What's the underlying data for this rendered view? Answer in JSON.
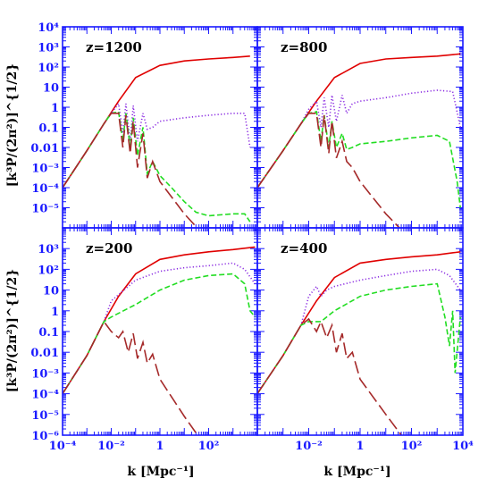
{
  "colors": {
    "axes": "#1a1aff",
    "total": "#e00000",
    "dotted": "#8a2be2",
    "dashed": "#22dd22",
    "longdash": "#a52a2a"
  },
  "yaxis_label": "[k³P/(2π²)]^{1/2}",
  "xaxis_label": "k [Mpc⁻¹]",
  "chart_data": [
    {
      "type": "line",
      "title": "z=1200",
      "xscale": "log",
      "yscale": "log",
      "xlim": [
        0.0001,
        10000
      ],
      "ylim": [
        1e-06,
        10000
      ],
      "x_ticks": [],
      "y_ticks": [
        "10⁴",
        "10³",
        "10²",
        "10",
        "1",
        "0.1",
        "0.01",
        "10⁻³",
        "10⁻⁴",
        "10⁻⁵"
      ],
      "series": [
        {
          "style": "solid",
          "color": "#e00000",
          "points": [
            [
              0.0001,
              0.0001
            ],
            [
              0.001,
              0.007
            ],
            [
              0.005,
              0.15
            ],
            [
              0.02,
              2
            ],
            [
              0.1,
              30
            ],
            [
              1,
              120
            ],
            [
              10,
              200
            ],
            [
              100,
              250
            ],
            [
              1000,
              300
            ],
            [
              5000,
              350
            ]
          ]
        },
        {
          "style": "dotted",
          "color": "#8a2be2",
          "points": [
            [
              0.0001,
              0.0001
            ],
            [
              0.001,
              0.007
            ],
            [
              0.005,
              0.15
            ],
            [
              0.01,
              0.5
            ],
            [
              0.02,
              1.5
            ],
            [
              0.03,
              0.05
            ],
            [
              0.04,
              1.5
            ],
            [
              0.06,
              0.02
            ],
            [
              0.08,
              1.2
            ],
            [
              0.12,
              0.02
            ],
            [
              0.2,
              0.5
            ],
            [
              0.3,
              0.08
            ],
            [
              0.5,
              0.1
            ],
            [
              1,
              0.2
            ],
            [
              10,
              0.3
            ],
            [
              100,
              0.4
            ],
            [
              1000,
              0.5
            ],
            [
              3000,
              0.5
            ],
            [
              5000,
              0.01
            ]
          ]
        },
        {
          "style": "dashed",
          "color": "#22dd22",
          "points": [
            [
              0.0001,
              0.0001
            ],
            [
              0.001,
              0.007
            ],
            [
              0.005,
              0.15
            ],
            [
              0.01,
              0.5
            ],
            [
              0.02,
              0.6
            ],
            [
              0.03,
              0.02
            ],
            [
              0.04,
              0.5
            ],
            [
              0.06,
              0.01
            ],
            [
              0.08,
              0.3
            ],
            [
              0.12,
              0.004
            ],
            [
              0.2,
              0.1
            ],
            [
              0.3,
              0.0005
            ],
            [
              0.5,
              0.002
            ],
            [
              1,
              0.0004
            ],
            [
              3,
              0.0001
            ],
            [
              10,
              2e-05
            ],
            [
              30,
              6e-06
            ],
            [
              100,
              4e-06
            ],
            [
              1000,
              5e-06
            ],
            [
              3000,
              5e-06
            ],
            [
              5000,
              2e-06
            ]
          ]
        },
        {
          "style": "longdash",
          "color": "#a52a2a",
          "points": [
            [
              0.0001,
              0.0001
            ],
            [
              0.001,
              0.007
            ],
            [
              0.005,
              0.15
            ],
            [
              0.01,
              0.5
            ],
            [
              0.02,
              0.5
            ],
            [
              0.03,
              0.01
            ],
            [
              0.04,
              0.4
            ],
            [
              0.06,
              0.005
            ],
            [
              0.08,
              0.2
            ],
            [
              0.12,
              0.001
            ],
            [
              0.2,
              0.05
            ],
            [
              0.3,
              0.0003
            ],
            [
              0.5,
              0.002
            ],
            [
              1,
              0.0002
            ],
            [
              10,
              5e-06
            ],
            [
              40,
              8e-07
            ]
          ]
        }
      ]
    },
    {
      "type": "line",
      "title": "z=800",
      "xscale": "log",
      "yscale": "log",
      "xlim": [
        0.0001,
        10000
      ],
      "ylim": [
        1e-06,
        10000
      ],
      "x_ticks": [],
      "y_ticks": [],
      "series": [
        {
          "style": "solid",
          "color": "#e00000",
          "points": [
            [
              0.0001,
              0.0001
            ],
            [
              0.001,
              0.007
            ],
            [
              0.005,
              0.15
            ],
            [
              0.02,
              2
            ],
            [
              0.1,
              30
            ],
            [
              1,
              150
            ],
            [
              10,
              250
            ],
            [
              100,
              300
            ],
            [
              1000,
              350
            ],
            [
              8000,
              450
            ]
          ]
        },
        {
          "style": "dotted",
          "color": "#8a2be2",
          "points": [
            [
              0.0001,
              0.0001
            ],
            [
              0.001,
              0.007
            ],
            [
              0.005,
              0.15
            ],
            [
              0.01,
              0.8
            ],
            [
              0.02,
              2
            ],
            [
              0.03,
              0.1
            ],
            [
              0.04,
              3
            ],
            [
              0.06,
              0.1
            ],
            [
              0.08,
              4
            ],
            [
              0.12,
              0.2
            ],
            [
              0.2,
              4
            ],
            [
              0.3,
              0.5
            ],
            [
              0.5,
              1.5
            ],
            [
              1,
              2
            ],
            [
              10,
              3
            ],
            [
              100,
              5
            ],
            [
              1000,
              7
            ],
            [
              4000,
              6
            ],
            [
              8000,
              0.1
            ]
          ]
        },
        {
          "style": "dashed",
          "color": "#22dd22",
          "points": [
            [
              0.0001,
              0.0001
            ],
            [
              0.001,
              0.007
            ],
            [
              0.005,
              0.15
            ],
            [
              0.01,
              0.5
            ],
            [
              0.02,
              0.6
            ],
            [
              0.03,
              0.02
            ],
            [
              0.04,
              0.4
            ],
            [
              0.06,
              0.01
            ],
            [
              0.08,
              0.2
            ],
            [
              0.12,
              0.01
            ],
            [
              0.2,
              0.05
            ],
            [
              0.3,
              0.008
            ],
            [
              0.5,
              0.01
            ],
            [
              1,
              0.015
            ],
            [
              10,
              0.02
            ],
            [
              100,
              0.03
            ],
            [
              1000,
              0.04
            ],
            [
              3000,
              0.02
            ],
            [
              6000,
              0.0002
            ],
            [
              8000,
              1e-05
            ]
          ]
        },
        {
          "style": "longdash",
          "color": "#a52a2a",
          "points": [
            [
              0.0001,
              0.0001
            ],
            [
              0.001,
              0.007
            ],
            [
              0.005,
              0.15
            ],
            [
              0.01,
              0.5
            ],
            [
              0.02,
              0.5
            ],
            [
              0.03,
              0.01
            ],
            [
              0.04,
              0.4
            ],
            [
              0.06,
              0.005
            ],
            [
              0.08,
              0.2
            ],
            [
              0.12,
              0.003
            ],
            [
              0.2,
              0.02
            ],
            [
              0.3,
              0.002
            ],
            [
              0.5,
              0.001
            ],
            [
              1,
              0.0002
            ],
            [
              10,
              5e-06
            ],
            [
              40,
              8e-07
            ]
          ]
        }
      ]
    },
    {
      "type": "line",
      "title": "z=200",
      "xscale": "log",
      "yscale": "log",
      "xlim": [
        0.0001,
        10000
      ],
      "ylim": [
        1e-06,
        10000
      ],
      "x_ticks": [
        "10⁻⁴",
        "10⁻²",
        "1",
        "10²"
      ],
      "y_ticks": [
        "10³",
        "10²",
        "10",
        "1",
        "0.1",
        "0.01",
        "10⁻³",
        "10⁻⁴",
        "10⁻⁵",
        "10⁻⁶"
      ],
      "series": [
        {
          "style": "solid",
          "color": "#e00000",
          "points": [
            [
              0.0001,
              0.0001
            ],
            [
              0.001,
              0.007
            ],
            [
              0.005,
              0.3
            ],
            [
              0.02,
              5
            ],
            [
              0.1,
              60
            ],
            [
              1,
              300
            ],
            [
              10,
              500
            ],
            [
              100,
              700
            ],
            [
              1000,
              900
            ],
            [
              8000,
              1200
            ]
          ]
        },
        {
          "style": "dotted",
          "color": "#8a2be2",
          "points": [
            [
              0.0001,
              0.0001
            ],
            [
              0.001,
              0.007
            ],
            [
              0.005,
              0.3
            ],
            [
              0.01,
              3
            ],
            [
              0.1,
              30
            ],
            [
              1,
              80
            ],
            [
              10,
              120
            ],
            [
              100,
              150
            ],
            [
              1000,
              200
            ],
            [
              3000,
              100
            ],
            [
              8000,
              20
            ]
          ]
        },
        {
          "style": "dashed",
          "color": "#22dd22",
          "points": [
            [
              0.0001,
              0.0001
            ],
            [
              0.001,
              0.007
            ],
            [
              0.005,
              0.3
            ],
            [
              0.01,
              0.5
            ],
            [
              0.1,
              2
            ],
            [
              1,
              10
            ],
            [
              10,
              30
            ],
            [
              100,
              50
            ],
            [
              1000,
              60
            ],
            [
              3000,
              20
            ],
            [
              5000,
              1
            ],
            [
              8000,
              0.5
            ]
          ]
        },
        {
          "style": "longdash",
          "color": "#a52a2a",
          "points": [
            [
              0.0001,
              0.0001
            ],
            [
              0.001,
              0.007
            ],
            [
              0.005,
              0.3
            ],
            [
              0.01,
              0.1
            ],
            [
              0.02,
              0.05
            ],
            [
              0.03,
              0.1
            ],
            [
              0.05,
              0.01
            ],
            [
              0.08,
              0.08
            ],
            [
              0.12,
              0.005
            ],
            [
              0.2,
              0.03
            ],
            [
              0.3,
              0.003
            ],
            [
              0.5,
              0.008
            ],
            [
              1,
              0.0005
            ],
            [
              10,
              8e-06
            ],
            [
              40,
              8e-07
            ]
          ]
        }
      ]
    },
    {
      "type": "line",
      "title": "z=400",
      "xscale": "log",
      "yscale": "log",
      "xlim": [
        0.0001,
        10000
      ],
      "ylim": [
        1e-06,
        10000
      ],
      "x_ticks": [
        "10⁻²",
        "1",
        "10²",
        "10⁴"
      ],
      "y_ticks": [],
      "series": [
        {
          "style": "solid",
          "color": "#e00000",
          "points": [
            [
              0.0001,
              0.0001
            ],
            [
              0.001,
              0.007
            ],
            [
              0.005,
              0.2
            ],
            [
              0.02,
              3
            ],
            [
              0.1,
              40
            ],
            [
              1,
              200
            ],
            [
              10,
              300
            ],
            [
              100,
              400
            ],
            [
              1000,
              500
            ],
            [
              8000,
              700
            ]
          ]
        },
        {
          "style": "dotted",
          "color": "#8a2be2",
          "points": [
            [
              0.0001,
              0.0001
            ],
            [
              0.001,
              0.007
            ],
            [
              0.005,
              0.2
            ],
            [
              0.01,
              5
            ],
            [
              0.02,
              15
            ],
            [
              0.03,
              5
            ],
            [
              0.05,
              10
            ],
            [
              0.1,
              15
            ],
            [
              1,
              30
            ],
            [
              10,
              50
            ],
            [
              100,
              80
            ],
            [
              1000,
              100
            ],
            [
              3000,
              50
            ],
            [
              8000,
              10
            ]
          ]
        },
        {
          "style": "dashed",
          "color": "#22dd22",
          "points": [
            [
              0.0001,
              0.0001
            ],
            [
              0.001,
              0.007
            ],
            [
              0.005,
              0.2
            ],
            [
              0.01,
              0.3
            ],
            [
              0.03,
              0.3
            ],
            [
              0.1,
              1
            ],
            [
              1,
              5
            ],
            [
              10,
              10
            ],
            [
              100,
              15
            ],
            [
              1000,
              20
            ],
            [
              2000,
              0.5
            ],
            [
              3000,
              0.02
            ],
            [
              4000,
              1
            ],
            [
              5000,
              0.001
            ],
            [
              8000,
              0.5
            ]
          ]
        },
        {
          "style": "longdash",
          "color": "#a52a2a",
          "points": [
            [
              0.0001,
              0.0001
            ],
            [
              0.001,
              0.007
            ],
            [
              0.005,
              0.2
            ],
            [
              0.01,
              0.4
            ],
            [
              0.02,
              0.1
            ],
            [
              0.03,
              0.3
            ],
            [
              0.05,
              0.05
            ],
            [
              0.08,
              0.2
            ],
            [
              0.12,
              0.01
            ],
            [
              0.2,
              0.08
            ],
            [
              0.3,
              0.005
            ],
            [
              0.5,
              0.01
            ],
            [
              1,
              0.0005
            ],
            [
              10,
              1e-05
            ],
            [
              40,
              1e-06
            ]
          ]
        }
      ]
    }
  ]
}
